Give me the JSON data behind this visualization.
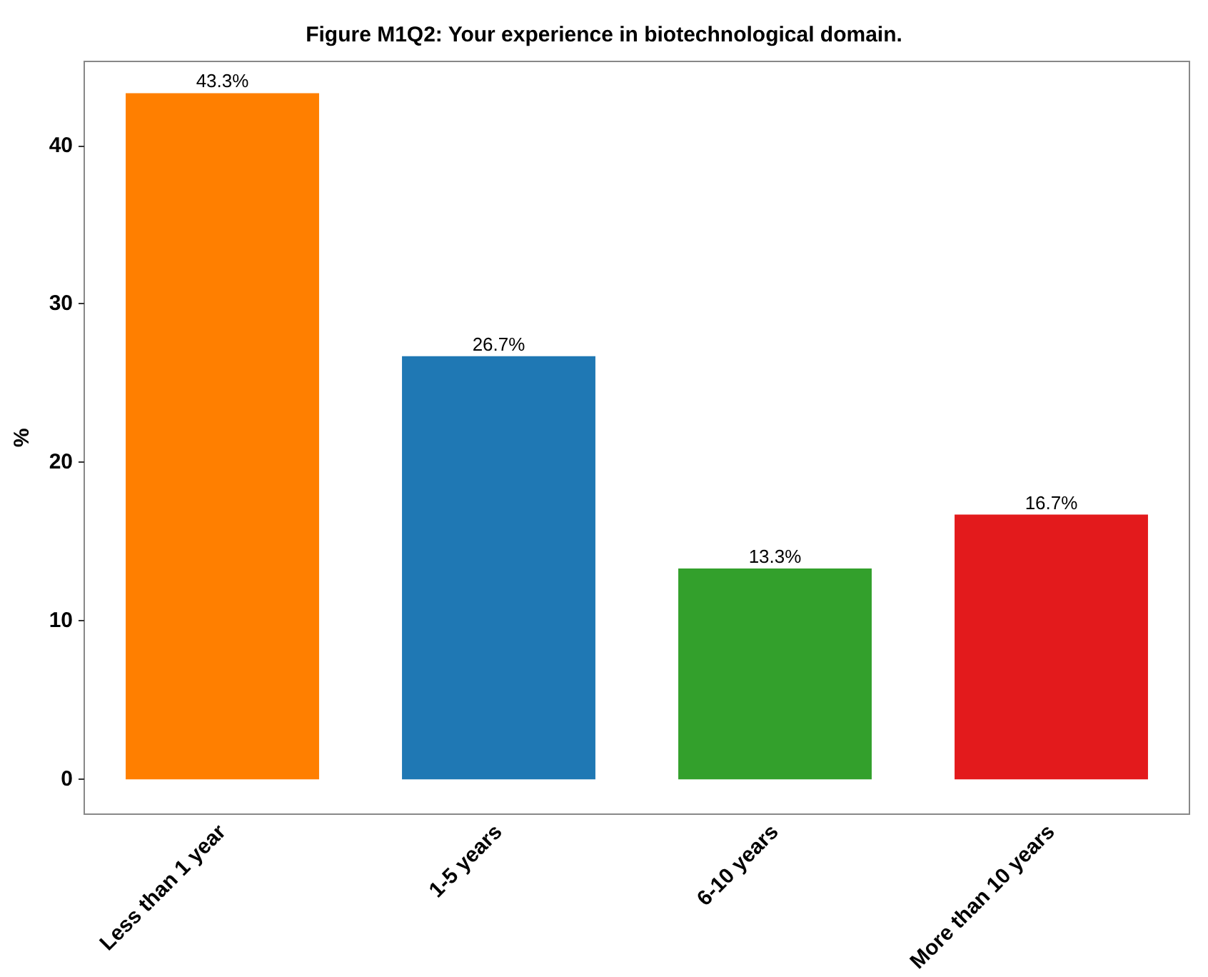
{
  "chart_data": {
    "type": "bar",
    "title": "Figure M1Q2: Your experience in biotechnological domain.",
    "ylabel": "%",
    "categories": [
      "Less than 1 year",
      "1-5 years",
      "6-10 years",
      "More than 10 years"
    ],
    "values": [
      43.3,
      26.7,
      13.3,
      16.7
    ],
    "colors": [
      "#ff7f00",
      "#1f78b4",
      "#33a02c",
      "#e31a1c"
    ],
    "value_labels": [
      "43.3%",
      "26.7%",
      "13.3%",
      "16.7%"
    ],
    "ylim": [
      -2.2,
      45.3
    ],
    "yticks": [
      0,
      10,
      20,
      30,
      40
    ],
    "grid": false
  }
}
